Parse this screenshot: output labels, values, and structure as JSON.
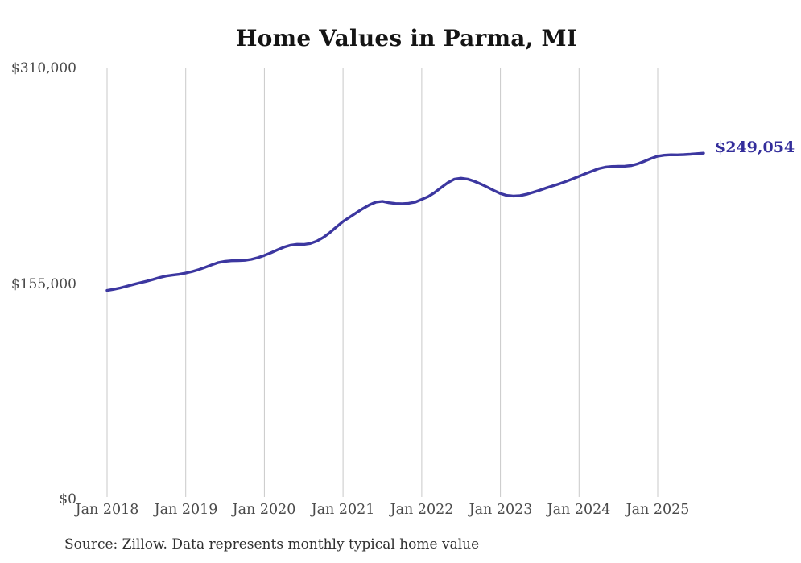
{
  "title": "Home Values in Parma, MI",
  "source_note": "Source: Zillow. Data represents monthly typical home value",
  "end_label": "$249,054",
  "colors": {
    "line": "#3c37a0",
    "end_label": "#332d9b",
    "title": "#141414",
    "axis_text": "#4a4a4a",
    "source_text": "#303030",
    "gridline": "#c9c9c9",
    "background": "#ffffff"
  },
  "chart_data": {
    "type": "line",
    "title": "Home Values in Parma, MI",
    "series_name": "Typical home value (monthly)",
    "frequency": "monthly",
    "start_month": "2018-01",
    "end_month": "2025-08",
    "final_value": 249054,
    "end_label": "$249,054",
    "xlabel": "",
    "ylabel": "",
    "ylim": [
      0,
      310000
    ],
    "grid": "vertical-only",
    "legend": "none",
    "x_tick_labels": [
      "Jan 2018",
      "Jan 2019",
      "Jan 2020",
      "Jan 2021",
      "Jan 2022",
      "Jan 2023",
      "Jan 2024",
      "Jan 2025"
    ],
    "x_tick_month_indices": [
      0,
      12,
      24,
      36,
      48,
      60,
      72,
      84
    ],
    "y_ticks": [
      {
        "label": "$310,000",
        "value": 310000
      },
      {
        "label": "$155,000",
        "value": 155000
      },
      {
        "label": "$0",
        "value": 0
      }
    ],
    "values": [
      150300,
      151100,
      152100,
      153300,
      154600,
      155800,
      156900,
      158200,
      159600,
      160700,
      161300,
      161900,
      162800,
      163900,
      165300,
      167000,
      168800,
      170400,
      171300,
      171700,
      171800,
      172000,
      172700,
      173900,
      175500,
      177400,
      179500,
      181500,
      182900,
      183500,
      183400,
      184100,
      185800,
      188500,
      192000,
      196000,
      199900,
      203000,
      206100,
      209100,
      211800,
      213800,
      214400,
      213400,
      212800,
      212700,
      213000,
      213800,
      215800,
      217800,
      220800,
      224400,
      227900,
      230400,
      231000,
      230400,
      228900,
      226900,
      224600,
      222200,
      220000,
      218600,
      218200,
      218500,
      219500,
      220900,
      222400,
      224000,
      225500,
      227000,
      228700,
      230500,
      232400,
      234300,
      236200,
      237900,
      239000,
      239500,
      239600,
      239700,
      240200,
      241500,
      243300,
      245300,
      246900,
      247600,
      247900,
      247800,
      248000,
      248300,
      248700,
      249054
    ],
    "source_note": "Source: Zillow. Data represents monthly typical home value"
  }
}
